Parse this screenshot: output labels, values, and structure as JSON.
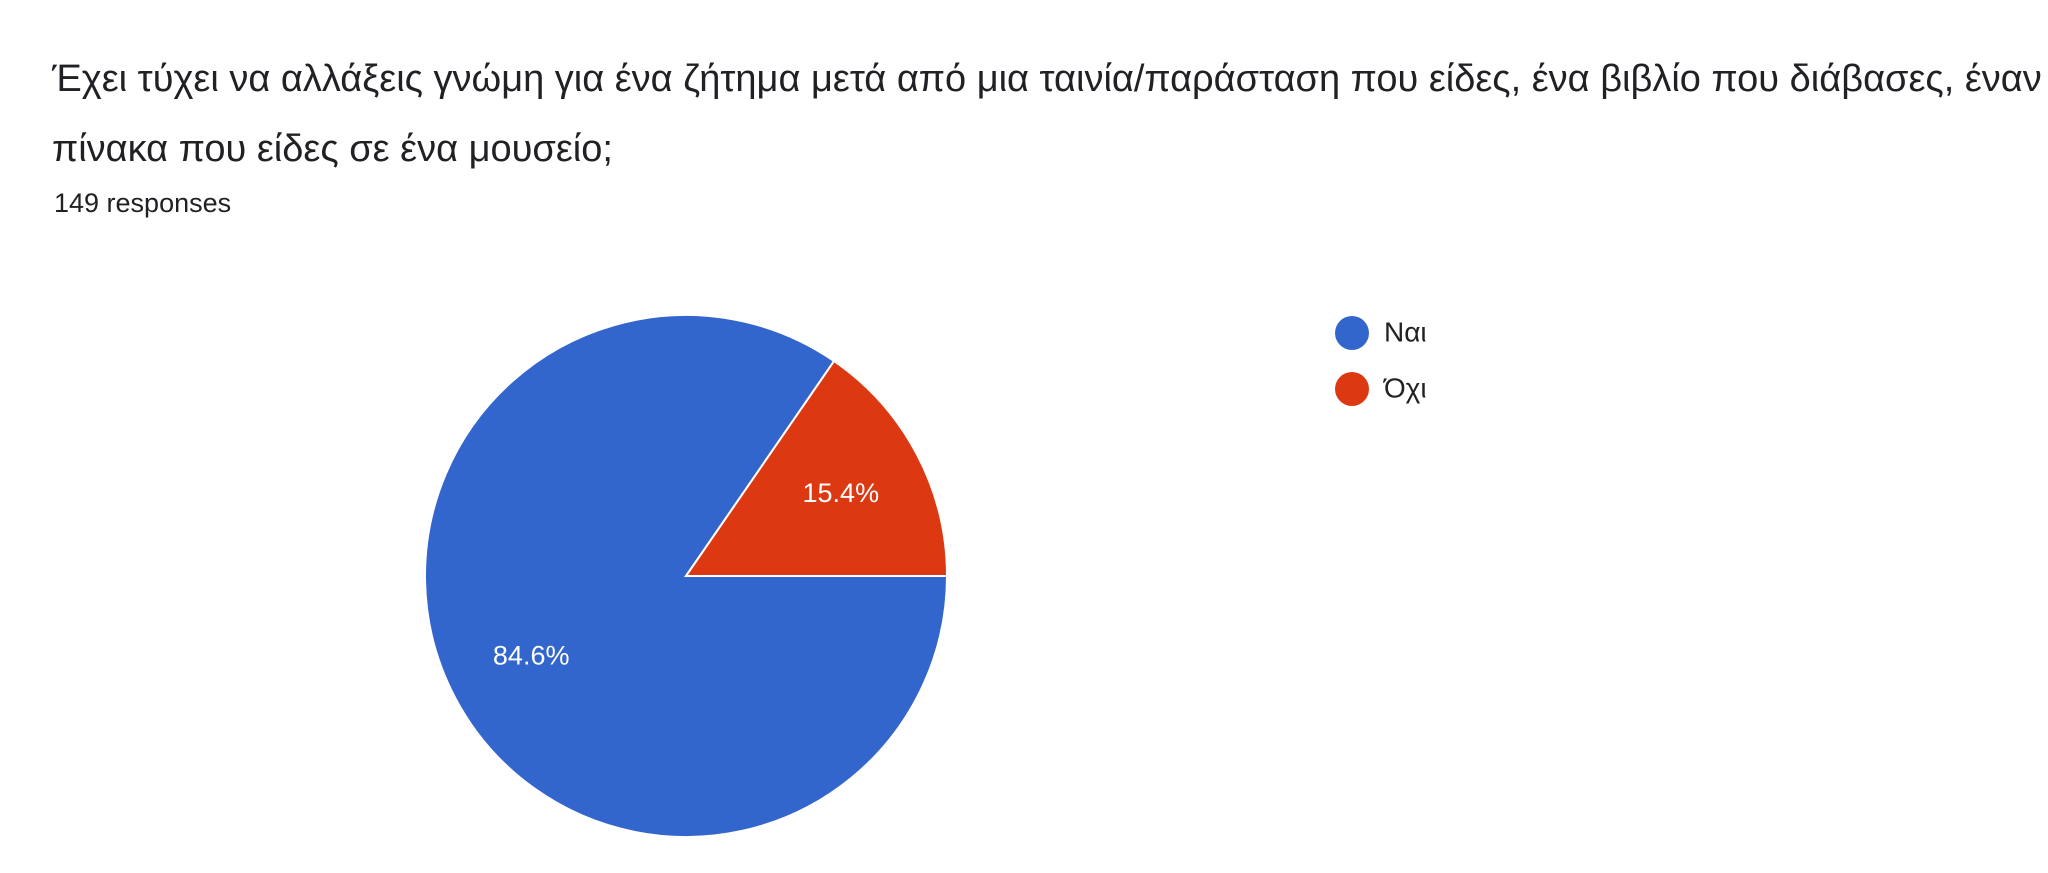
{
  "chart_data": {
    "type": "pie",
    "title": "Έχει τύχει να αλλάξεις γνώμη για ένα ζήτημα μετά από μια ταινία/παράσταση που είδες, ένα βιβλίο που διάβασες, έναν πίνακα που είδες σε ένα μουσείο;",
    "subtitle": "149 responses",
    "categories": [
      "Ναι",
      "Όχι"
    ],
    "values": [
      84.6,
      15.4
    ],
    "value_labels": [
      "84.6%",
      "15.4%"
    ],
    "colors": [
      "#3366cc",
      "#dc3912"
    ],
    "legend": "right"
  }
}
